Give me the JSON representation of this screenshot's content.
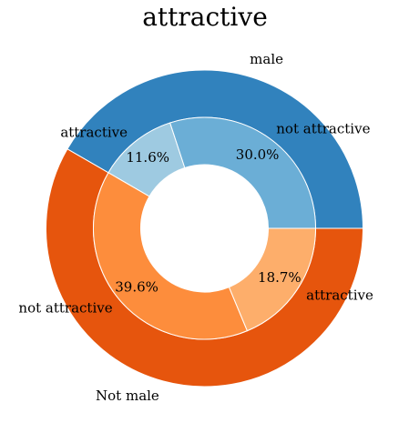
{
  "chart_data": {
    "type": "pie",
    "title": "attractive",
    "outer_ring": [
      {
        "label": "male",
        "value": 41.6,
        "color": "#3182bd"
      },
      {
        "label": "Not male",
        "value": 58.3,
        "color": "#e6550d"
      }
    ],
    "inner_ring": [
      {
        "label": "not attractive",
        "value": 30.0,
        "pct_text": "30.0%",
        "color": "#6baed6"
      },
      {
        "label": "attractive",
        "value": 11.6,
        "pct_text": "11.6%",
        "color": "#9ecae1"
      },
      {
        "label": "not attractive",
        "value": 39.6,
        "pct_text": "39.6%",
        "color": "#fd8d3c"
      },
      {
        "label": "attractive",
        "value": 18.7,
        "pct_text": "18.7%",
        "color": "#fdae6b"
      }
    ]
  }
}
